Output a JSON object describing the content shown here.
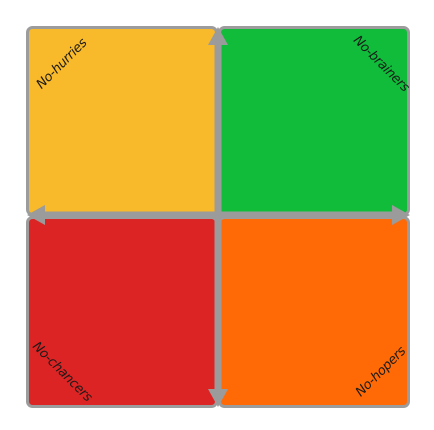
{
  "matrix": {
    "quadrants": {
      "top_left": {
        "label": "No-hurries",
        "color": "#F8B92A"
      },
      "top_right": {
        "label": "No-brainers",
        "color": "#10BC3A"
      },
      "bottom_left": {
        "label": "No-chancers",
        "color": "#DD2424"
      },
      "bottom_right": {
        "label": "No-hopers",
        "color": "#FF6A06"
      }
    },
    "axis_color": "#9B9B9B",
    "border_color": "#9C9C9C"
  }
}
